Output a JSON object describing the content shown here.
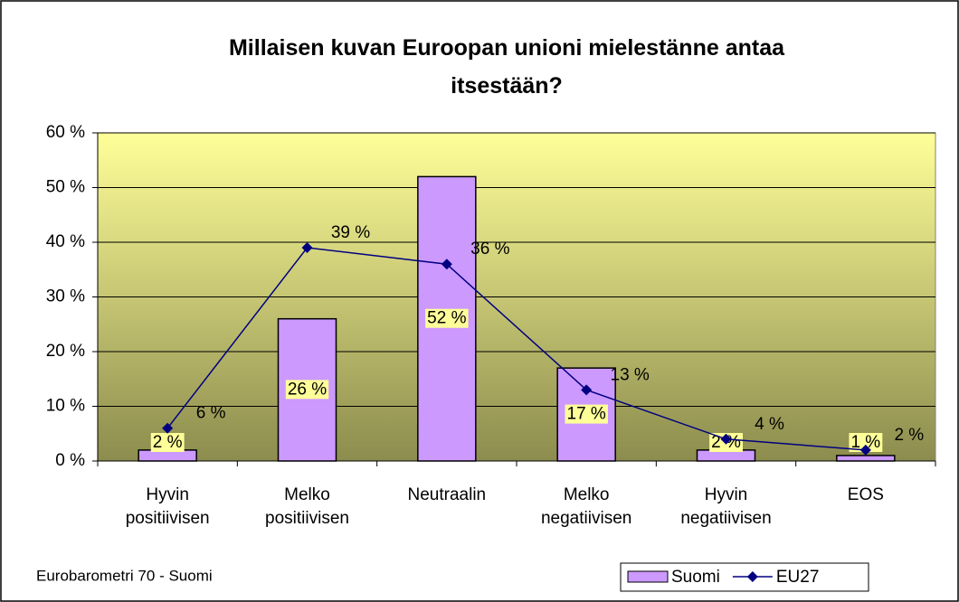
{
  "chart_data": {
    "type": "bar",
    "title": "Millaisen kuvan Euroopan unioni mielestänne antaa itsestään?",
    "footer": "Eurobarometri 70 - Suomi",
    "categories": [
      "Hyvin\npositiivisen",
      "Melko\npositiivisen",
      "Neutraalin",
      "Melko\nnegatiivisen",
      "Hyvin\nnegatiivisen",
      "EOS"
    ],
    "series": [
      {
        "name": "Suomi",
        "type": "bar",
        "color": "#cc99ff",
        "values": [
          2,
          26,
          52,
          17,
          2,
          1
        ],
        "value_labels": [
          "2 %",
          "26 %",
          "52 %",
          "17 %",
          "2 %",
          "1 %"
        ]
      },
      {
        "name": "EU27",
        "type": "line",
        "color": "#000080",
        "values": [
          6,
          39,
          36,
          13,
          4,
          2
        ],
        "value_labels": [
          "6 %",
          "39 %",
          "36 %",
          "13 %",
          "4 %",
          "2 %"
        ]
      }
    ],
    "ylim": [
      0,
      60
    ],
    "yticks": [
      {
        "value": 0,
        "label": "0 %"
      },
      {
        "value": 10,
        "label": "10 %"
      },
      {
        "value": 20,
        "label": "20 %"
      },
      {
        "value": 30,
        "label": "30 %"
      },
      {
        "value": 40,
        "label": "40 %"
      },
      {
        "value": 50,
        "label": "50 %"
      },
      {
        "value": 60,
        "label": "60 %"
      }
    ],
    "grid": true,
    "legend": "bottom-right"
  }
}
